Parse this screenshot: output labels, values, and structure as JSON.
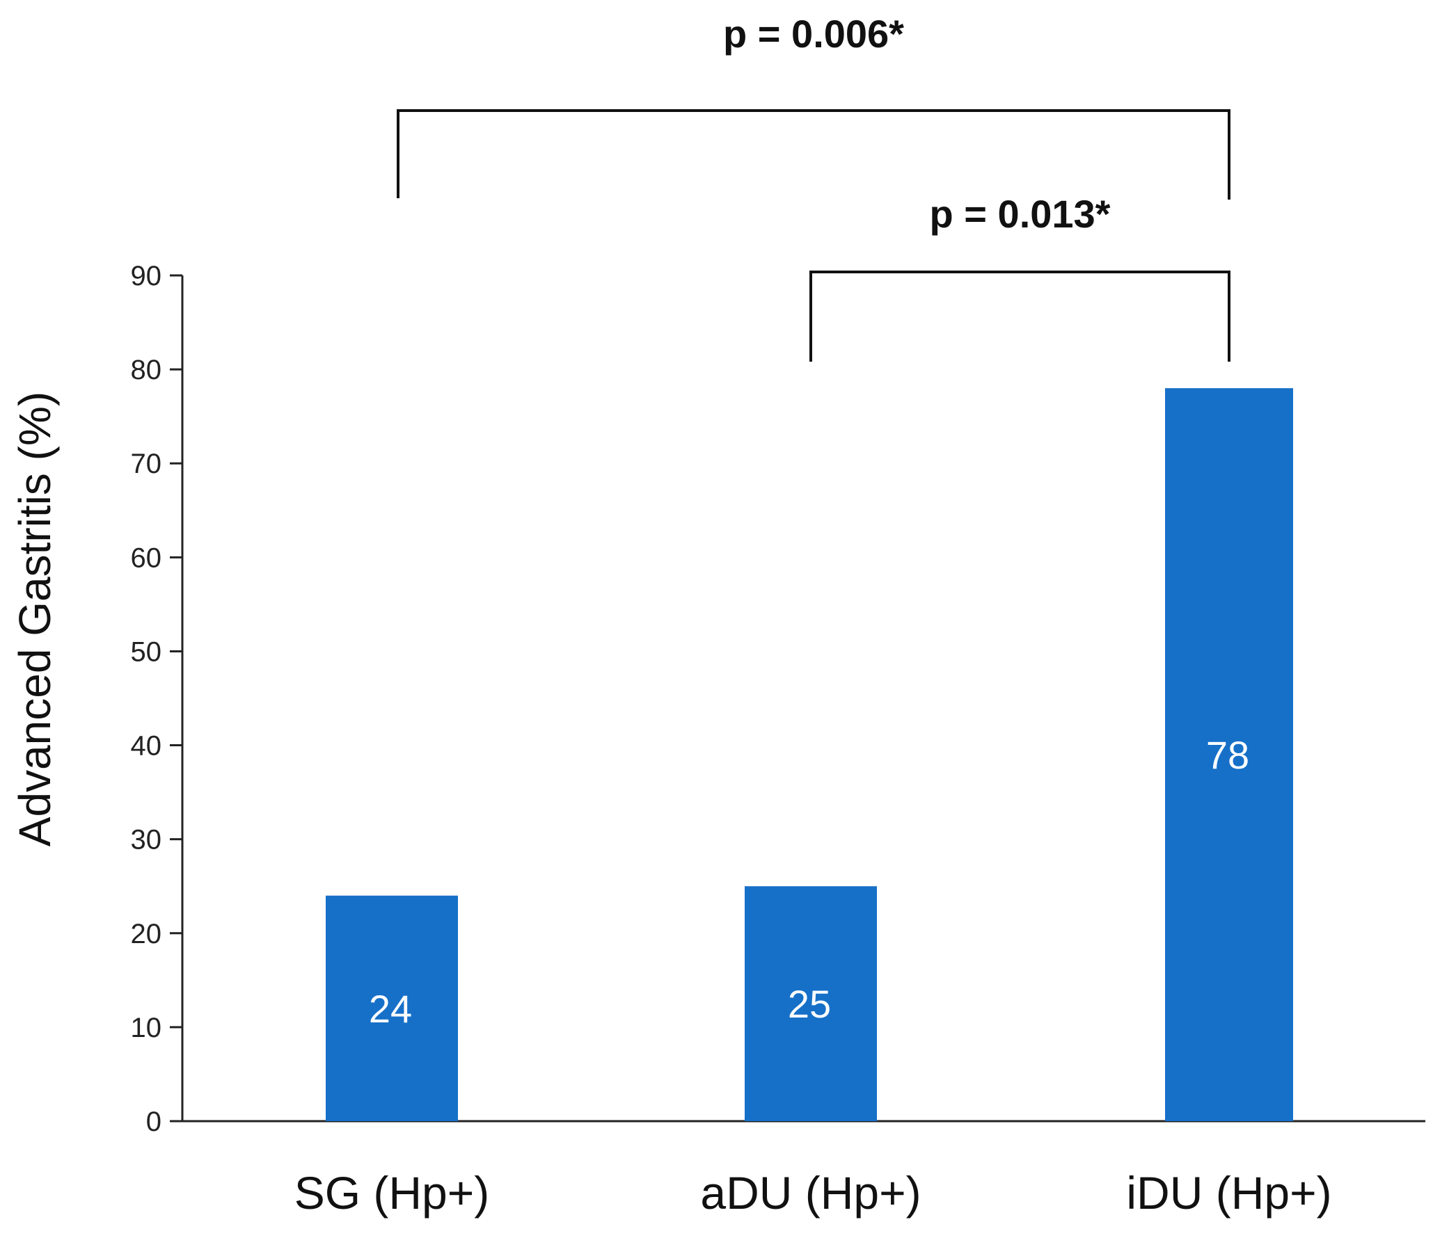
{
  "chart_data": {
    "type": "bar",
    "categories": [
      "SG (Hp+)",
      "aDU (Hp+)",
      "iDU (Hp+)"
    ],
    "values": [
      24,
      25,
      78
    ],
    "data_labels": [
      "24",
      "25",
      "78"
    ],
    "ylabel": "Advanced Gastritis (%)",
    "xlabel": "",
    "ylim": [
      0,
      90
    ],
    "yticks": [
      0,
      10,
      20,
      30,
      40,
      50,
      60,
      70,
      80,
      90
    ],
    "grid": false,
    "legend": "none",
    "bar_color": "#1670C8",
    "significance": [
      {
        "label": "p = 0.006*",
        "from": 0,
        "to": 2
      },
      {
        "label": "p = 0.013*",
        "from": 1,
        "to": 2
      }
    ]
  }
}
